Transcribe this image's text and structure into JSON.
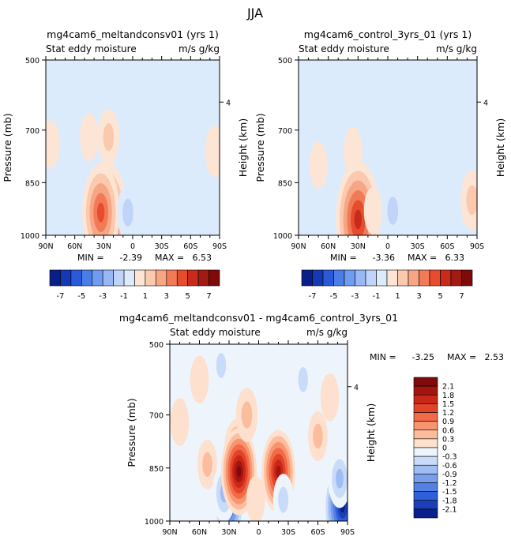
{
  "figure": {
    "title": "JJA"
  },
  "chart_data": [
    {
      "type": "heatmap",
      "title": "mg4cam6_meltandconsv01 (yrs 1)",
      "subtitle_left": "Stat eddy moisture",
      "subtitle_right": "m/s g/kg",
      "ylabel": "Pressure (mb)",
      "y2label": "Height (km)",
      "xticks": [
        "90N",
        "60N",
        "30N",
        "0",
        "30S",
        "60S",
        "90S"
      ],
      "yticks": [
        "500",
        "700",
        "850",
        "1000"
      ],
      "y2ticks": [
        "4"
      ],
      "ylim": [
        500,
        1000
      ],
      "min_label": "MIN =",
      "min_value": "-2.39",
      "max_label": "MAX =",
      "max_value": "6.53",
      "colorbar": {
        "orientation": "horizontal",
        "tick_labels": [
          "-7",
          "-5",
          "-3",
          "-1",
          "1",
          "3",
          "5",
          "7"
        ],
        "levels": [
          -7,
          -6,
          -5,
          -4,
          -3,
          -2,
          -1,
          0,
          1,
          2,
          3,
          4,
          5,
          6,
          7
        ],
        "colors": [
          "#0a1e8a",
          "#1539b5",
          "#2a5ad8",
          "#4a7de8",
          "#6f9bf0",
          "#97b8f4",
          "#bfd4f8",
          "#dcebfb",
          "#fde5d6",
          "#fbc9ae",
          "#f7a685",
          "#f17a57",
          "#e74c2e",
          "#c92b1b",
          "#a21b12",
          "#7e0a0a"
        ]
      },
      "regions": [
        {
          "lat": 85,
          "p": 740,
          "v": 0.5
        },
        {
          "lat": 45,
          "p": 720,
          "v": 0.6
        },
        {
          "lat": 25,
          "p": 720,
          "v": 1.2
        },
        {
          "lat": 30,
          "p": 900,
          "v": 2.5
        },
        {
          "lat": 28,
          "p": 955,
          "v": 6.0
        },
        {
          "lat": 33,
          "p": 935,
          "v": 4.5
        },
        {
          "lat": 5,
          "p": 935,
          "v": -1.2
        },
        {
          "lat": -45,
          "p": 620,
          "v": -0.5
        },
        {
          "lat": -85,
          "p": 760,
          "v": 0.8
        }
      ]
    },
    {
      "type": "heatmap",
      "title": "mg4cam6_control_3yrs_01 (yrs 1)",
      "subtitle_left": "Stat eddy moisture",
      "subtitle_right": "m/s g/kg",
      "ylabel": "Pressure (mb)",
      "y2label": "Height (km)",
      "xticks": [
        "90N",
        "60N",
        "30N",
        "0",
        "30S",
        "60S",
        "90S"
      ],
      "yticks": [
        "500",
        "700",
        "850",
        "1000"
      ],
      "y2ticks": [
        "4"
      ],
      "ylim": [
        500,
        1000
      ],
      "min_label": "MIN =",
      "min_value": "-3.36",
      "max_label": "MAX =",
      "max_value": "6.33",
      "colorbar": {
        "orientation": "horizontal",
        "tick_labels": [
          "-7",
          "-5",
          "-3",
          "-1",
          "1",
          "3",
          "5",
          "7"
        ],
        "levels": [
          -7,
          -6,
          -5,
          -4,
          -3,
          -2,
          -1,
          0,
          1,
          2,
          3,
          4,
          5,
          6,
          7
        ],
        "colors": [
          "#0a1e8a",
          "#1539b5",
          "#2a5ad8",
          "#4a7de8",
          "#6f9bf0",
          "#97b8f4",
          "#bfd4f8",
          "#dcebfb",
          "#fde5d6",
          "#fbc9ae",
          "#f7a685",
          "#f17a57",
          "#e74c2e",
          "#c92b1b",
          "#a21b12",
          "#7e0a0a"
        ]
      },
      "regions": [
        {
          "lat": 70,
          "p": 800,
          "v": 0.5
        },
        {
          "lat": 35,
          "p": 760,
          "v": 0.6
        },
        {
          "lat": 30,
          "p": 900,
          "v": 2.5
        },
        {
          "lat": 30,
          "p": 955,
          "v": 6.0
        },
        {
          "lat": 15,
          "p": 930,
          "v": 0.5
        },
        {
          "lat": -5,
          "p": 930,
          "v": -1.2
        },
        {
          "lat": -25,
          "p": 820,
          "v": -1.0
        },
        {
          "lat": -60,
          "p": 960,
          "v": -0.8
        },
        {
          "lat": -85,
          "p": 900,
          "v": 1.5
        }
      ]
    },
    {
      "type": "heatmap",
      "title": "mg4cam6_meltandconsv01 - mg4cam6_control_3yrs_01",
      "subtitle_left": "Stat eddy moisture",
      "subtitle_right": "m/s g/kg",
      "ylabel": "Pressure (mb)",
      "y2label": "Height (km)",
      "xticks": [
        "90N",
        "60N",
        "30N",
        "0",
        "30S",
        "60S",
        "90S"
      ],
      "yticks": [
        "500",
        "700",
        "850",
        "1000"
      ],
      "y2ticks": [
        "4"
      ],
      "ylim": [
        500,
        1000
      ],
      "min_label": "MIN =",
      "min_value": "-3.25",
      "max_label": "MAX =",
      "max_value": "2.53",
      "colorbar": {
        "orientation": "vertical",
        "tick_labels": [
          "2.1",
          "1.8",
          "1.5",
          "1.2",
          "0.9",
          "0.6",
          "0.3",
          "0",
          "-0.3",
          "-0.6",
          "-0.9",
          "-1.2",
          "-1.5",
          "-1.8",
          "-2.1"
        ],
        "colors": [
          "#7e0a0a",
          "#a51510",
          "#c92718",
          "#e2442a",
          "#f26a48",
          "#f8956f",
          "#fbbd9d",
          "#fde0cd",
          "#eef4fc",
          "#c8dbf8",
          "#9fbdf3",
          "#7a9eec",
          "#5280e5",
          "#2f5fd9",
          "#1a3fb8",
          "#0a1f8c"
        ]
      },
      "regions": [
        {
          "lat": 80,
          "p": 720,
          "v": 0.3
        },
        {
          "lat": 60,
          "p": 600,
          "v": 0.3
        },
        {
          "lat": 52,
          "p": 840,
          "v": 0.4
        },
        {
          "lat": 38,
          "p": 560,
          "v": -0.4
        },
        {
          "lat": 30,
          "p": 960,
          "v": -1.6
        },
        {
          "lat": 35,
          "p": 920,
          "v": -0.8
        },
        {
          "lat": 22,
          "p": 800,
          "v": 1.0
        },
        {
          "lat": 20,
          "p": 860,
          "v": 2.1
        },
        {
          "lat": 12,
          "p": 700,
          "v": 0.6
        },
        {
          "lat": 3,
          "p": 940,
          "v": 0.3
        },
        {
          "lat": -20,
          "p": 860,
          "v": 1.9
        },
        {
          "lat": -25,
          "p": 940,
          "v": -0.5
        },
        {
          "lat": -45,
          "p": 600,
          "v": -0.4
        },
        {
          "lat": -60,
          "p": 760,
          "v": 0.4
        },
        {
          "lat": -72,
          "p": 650,
          "v": 0.3
        },
        {
          "lat": -85,
          "p": 960,
          "v": -2.4
        },
        {
          "lat": -82,
          "p": 880,
          "v": -0.8
        }
      ]
    }
  ]
}
